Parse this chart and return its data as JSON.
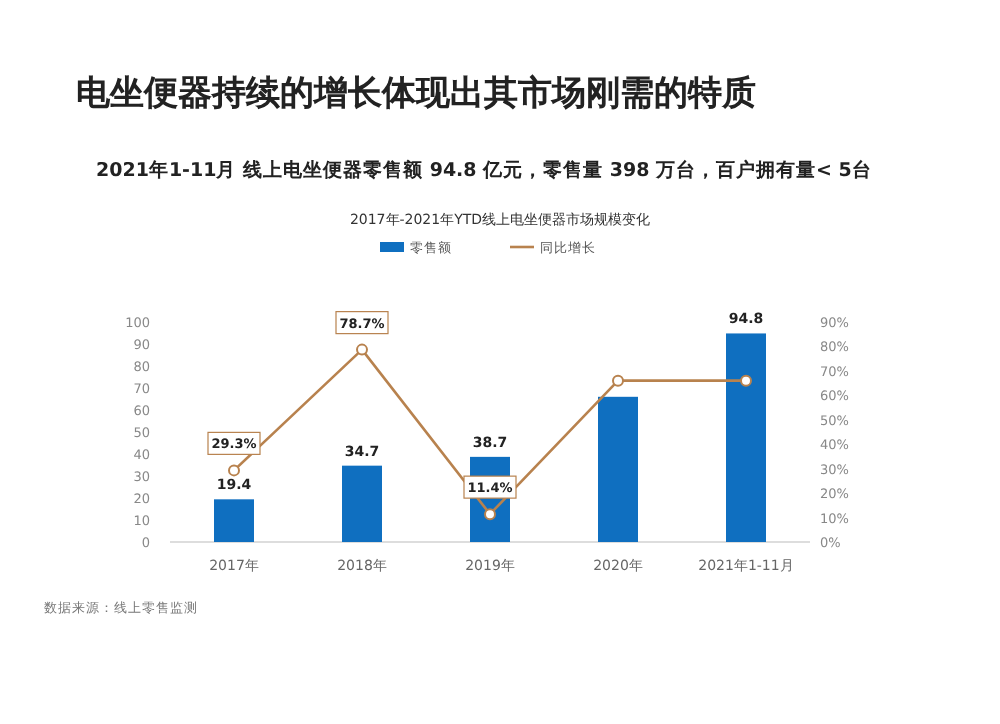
{
  "chart_data": {
    "type": "bar",
    "title": "电坐便器持续的增长体现出其市场刚需的特质",
    "subtitle": "2021年1-11月 线上电坐便器零售额 94.8 亿元，零售量 398 万台，百户拥有量< 5台",
    "annotations": [
      "2017年-2021年YTD线上电坐便器市场规模变化",
      "数据来源：线上零售监测"
    ],
    "categories": [
      "2017年",
      "2018年",
      "2019年",
      "2020年",
      "2021年1-11月"
    ],
    "series": [
      {
        "name": "零售额",
        "color": "#0f6fc0",
        "values": [
          19.4,
          34.7,
          38.7,
          66,
          94.8
        ],
        "value_labels": [
          "19.4",
          "34.7",
          "38.7",
          null,
          "94.8"
        ]
      },
      {
        "name": "同比增长",
        "type": "line",
        "axis": "y2",
        "color": "#b8824e",
        "marker": "circle",
        "values": [
          29.3,
          78.7,
          11.4,
          66,
          66
        ],
        "value_labels": [
          "29.3%",
          "78.7%",
          "11.4%",
          null,
          null
        ]
      }
    ],
    "ylim": [
      0,
      100
    ],
    "yticks": [
      0,
      10,
      20,
      30,
      40,
      50,
      60,
      70,
      80,
      90,
      100
    ],
    "y2lim": [
      0,
      90
    ],
    "y2ticks": [
      {
        "value": 0,
        "label": "0%"
      },
      {
        "value": 10,
        "label": "10%"
      },
      {
        "value": 20,
        "label": "20%"
      },
      {
        "value": 30,
        "label": "30%"
      },
      {
        "value": 40,
        "label": "40%"
      },
      {
        "value": 50,
        "label": "50%"
      },
      {
        "value": 60,
        "label": "60%"
      },
      {
        "value": 70,
        "label": "70%"
      },
      {
        "value": 80,
        "label": "80%"
      },
      {
        "value": 90,
        "label": "90%"
      }
    ],
    "legend": "top"
  }
}
